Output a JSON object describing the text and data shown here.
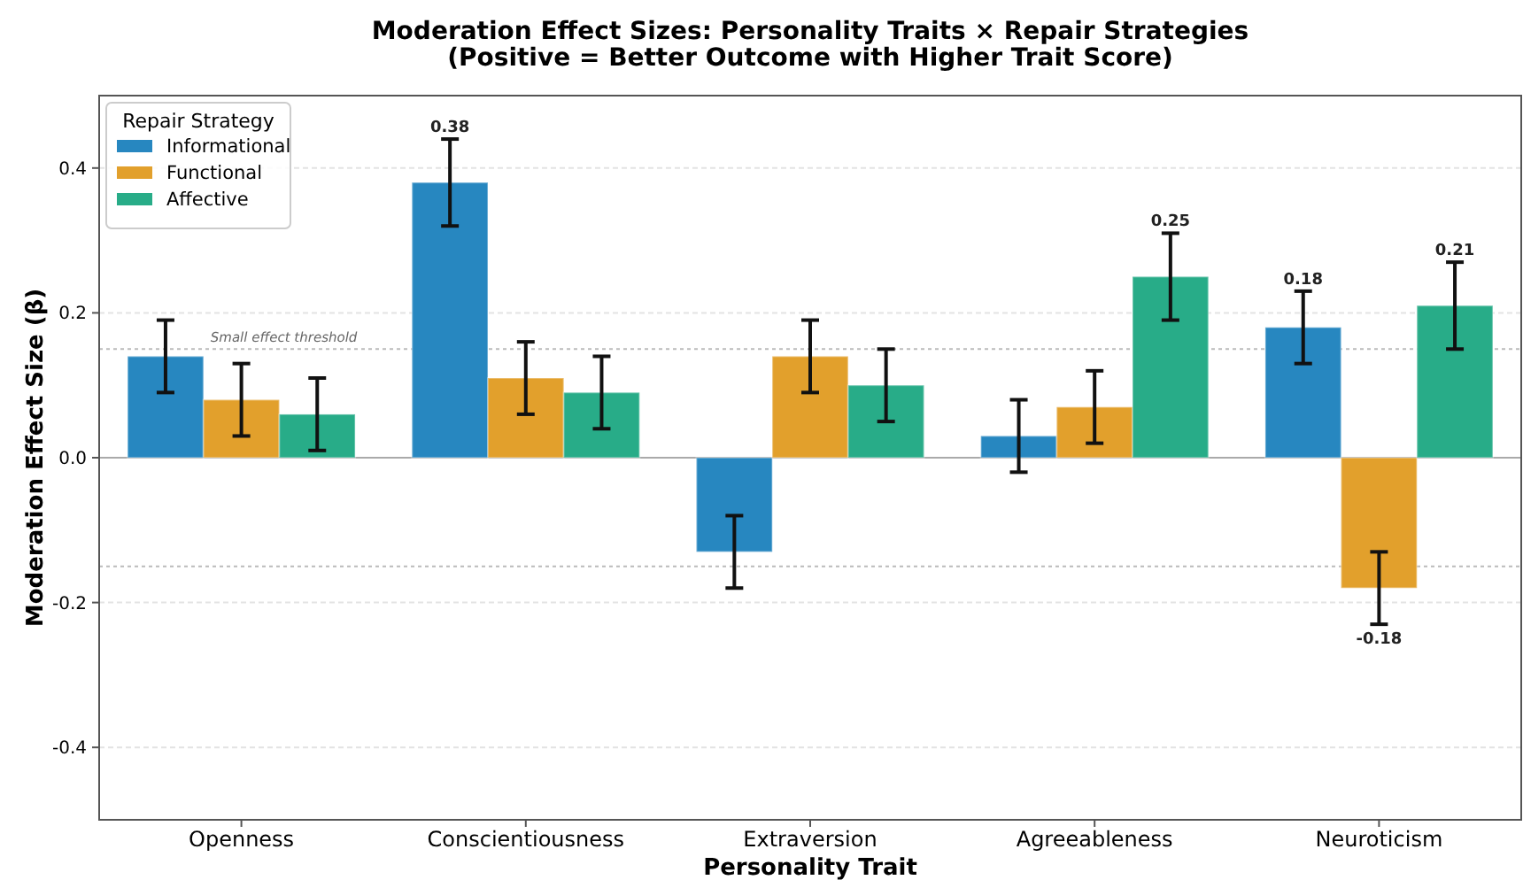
{
  "chart_data": {
    "type": "bar",
    "title": "Moderation Effect Sizes: Personality Traits × Repair Strategies\n(Positive = Better Outcome with Higher Trait Score)",
    "xlabel": "Personality Trait",
    "ylabel": "Moderation Effect Size (β)",
    "legend_title": "Repair Strategy",
    "categories": [
      "Openness",
      "Conscientiousness",
      "Extraversion",
      "Agreeableness",
      "Neuroticism"
    ],
    "series": [
      {
        "name": "Informational",
        "color": "#2787c0",
        "values": [
          0.14,
          0.38,
          -0.13,
          0.03,
          0.18
        ],
        "errors": [
          0.05,
          0.06,
          0.05,
          0.05,
          0.05
        ],
        "value_labels": [
          null,
          "0.38",
          null,
          null,
          "0.18"
        ]
      },
      {
        "name": "Functional",
        "color": "#e2a02c",
        "values": [
          0.08,
          0.11,
          0.14,
          0.07,
          -0.18
        ],
        "errors": [
          0.05,
          0.05,
          0.05,
          0.05,
          0.05
        ],
        "value_labels": [
          null,
          null,
          null,
          null,
          "-0.18"
        ]
      },
      {
        "name": "Affective",
        "color": "#28ac88",
        "values": [
          0.06,
          0.09,
          0.1,
          0.25,
          0.21
        ],
        "errors": [
          0.05,
          0.05,
          0.05,
          0.06,
          0.06
        ],
        "value_labels": [
          null,
          null,
          null,
          "0.25",
          "0.21"
        ]
      }
    ],
    "ylim": [
      -0.5,
      0.5
    ],
    "yticks": [
      -0.4,
      -0.2,
      {
        "value": 0,
        "label": "0.0"
      },
      0.2,
      0.4
    ],
    "ref_lines": [
      {
        "axis": "y",
        "value": 0,
        "color": "#aaaaaa",
        "line_style": "solid"
      },
      {
        "axis": "y",
        "value": 0.15,
        "label": "Small effect threshold",
        "color": "#bbbbbb",
        "line_style": "dotted"
      },
      {
        "axis": "y",
        "value": -0.15,
        "color": "#bbbbbb",
        "line_style": "dotted"
      }
    ],
    "grid": "y",
    "legend": "top left"
  }
}
